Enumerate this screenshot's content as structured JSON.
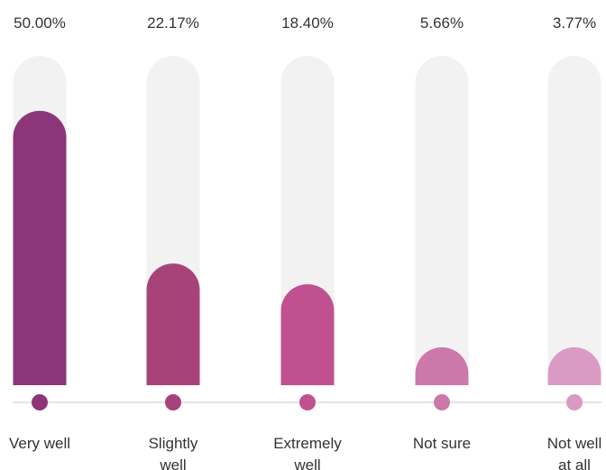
{
  "chart_data": {
    "type": "bar",
    "categories": [
      [
        "Very well"
      ],
      [
        "Slightly",
        "well"
      ],
      [
        "Extremely",
        "well"
      ],
      [
        "Not sure"
      ],
      [
        "Not well",
        "at all"
      ]
    ],
    "values": [
      50.0,
      22.17,
      18.4,
      5.66,
      3.77
    ],
    "value_labels": [
      "50.00%",
      "22.17%",
      "18.40%",
      "5.66%",
      "3.77%"
    ],
    "unit": "%",
    "colors": [
      "#8c3679",
      "#a8437a",
      "#c0508f",
      "#cc78aa",
      "#d99bc3"
    ],
    "track_color": "#f2f2f2",
    "axis_color": "#c8c8c8",
    "grid": false,
    "legend": "none"
  }
}
